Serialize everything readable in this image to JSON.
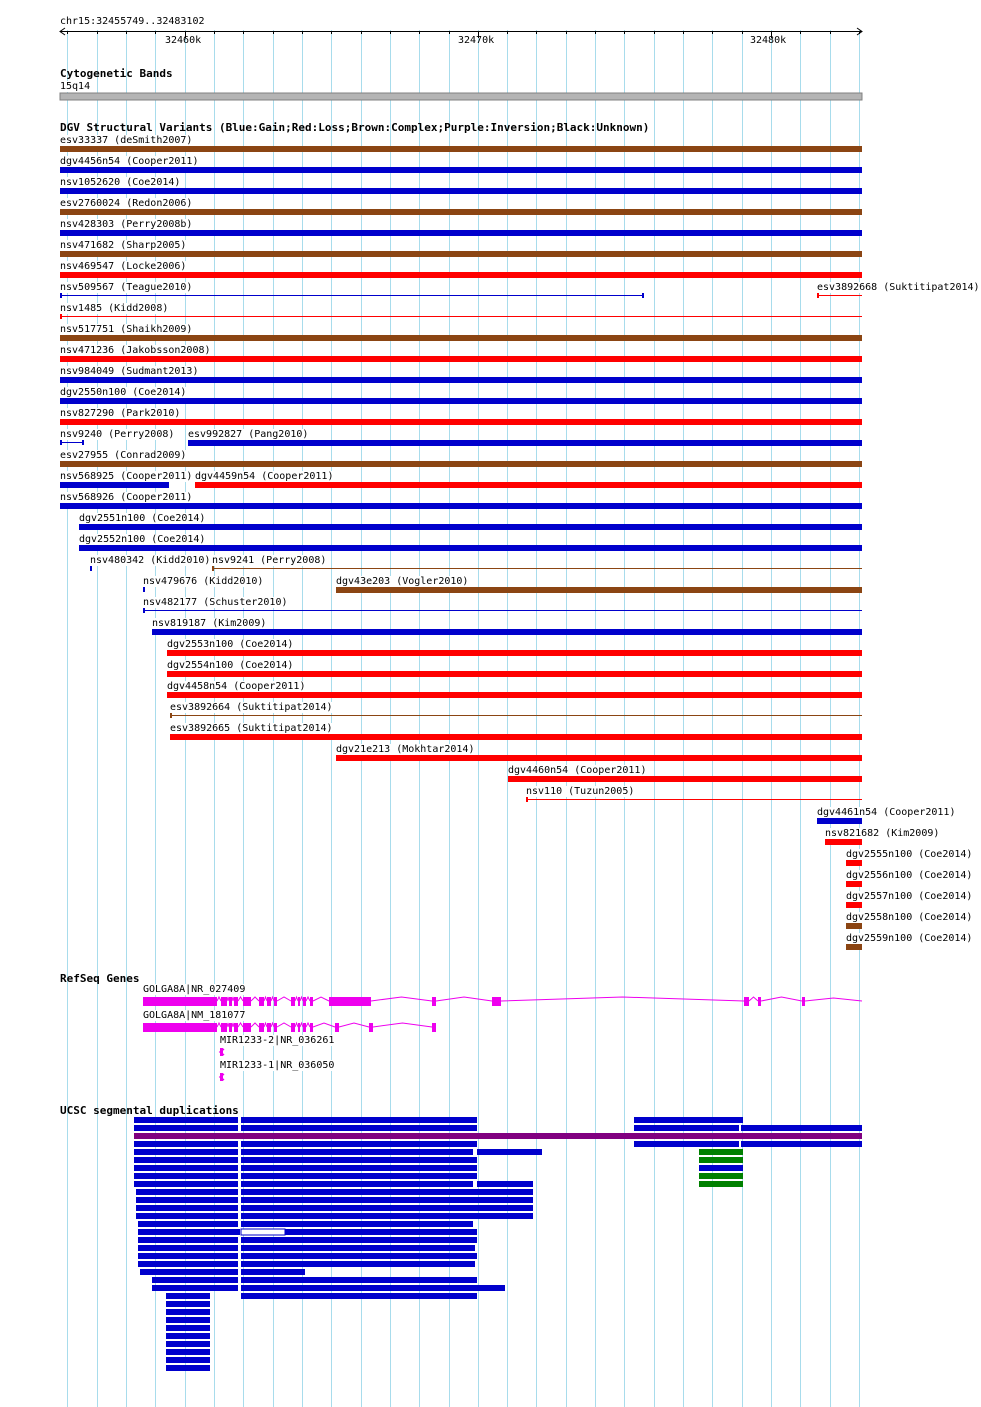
{
  "ruler": {
    "region_label": "chr15:32455749..32483102",
    "start": 32455749,
    "end": 32483102,
    "ticks": [
      {
        "pos": 32460000,
        "label": "32460k"
      },
      {
        "pos": 32470000,
        "label": "32470k"
      },
      {
        "pos": 32480000,
        "label": "32480k"
      }
    ]
  },
  "cytoband": {
    "title": "Cytogenetic Bands",
    "band": "15q14"
  },
  "dgv": {
    "title": "DGV Structural Variants (Blue:Gain;Red:Loss;Brown:Complex;Purple:Inversion;Black:Unknown)",
    "colors": {
      "gain": "#0000cc",
      "loss": "#ff0000",
      "complex": "#8b4513"
    },
    "variants": [
      {
        "label": "esv33337 (deSmith2007)",
        "type": "complex",
        "start": 32455749,
        "end": 32483102,
        "thick": true
      },
      {
        "label": "dgv4456n54 (Cooper2011)",
        "type": "gain",
        "start": 32455749,
        "end": 32483102,
        "thick": true
      },
      {
        "label": "nsv1052620 (Coe2014)",
        "type": "gain",
        "start": 32455749,
        "end": 32483102,
        "thick": true
      },
      {
        "label": "esv2760024 (Redon2006)",
        "type": "complex",
        "start": 32455749,
        "end": 32483102,
        "thick": true
      },
      {
        "label": "nsv428303 (Perry2008b)",
        "type": "gain",
        "start": 32455749,
        "end": 32483102,
        "thick": true
      },
      {
        "label": "nsv471682 (Sharp2005)",
        "type": "complex",
        "start": 32455749,
        "end": 32483102,
        "thick": true
      },
      {
        "label": "nsv469547 (Locke2006)",
        "type": "loss",
        "start": 32455749,
        "end": 32483102,
        "thick": true
      },
      {
        "label": "nsv509567 (Teague2010)",
        "type": "gain",
        "start": 32455749,
        "end": 32475660,
        "thick": false
      },
      {
        "label": "esv3892668 (Suktitipat2014)",
        "type": "loss",
        "start": 32481570,
        "end": 32483102,
        "thick": false
      },
      {
        "label": "nsv1485 (Kidd2008)",
        "type": "loss",
        "start": 32455749,
        "end": 32483102,
        "thick": false
      },
      {
        "label": "nsv517751 (Shaikh2009)",
        "type": "complex",
        "start": 32455749,
        "end": 32483102,
        "thick": true
      },
      {
        "label": "nsv471236 (Jakobsson2008)",
        "type": "loss",
        "start": 32455749,
        "end": 32483102,
        "thick": true
      },
      {
        "label": "nsv984049 (Sudmant2013)",
        "type": "gain",
        "start": 32455749,
        "end": 32483102,
        "thick": true
      },
      {
        "label": "dgv2550n100 (Coe2014)",
        "type": "gain",
        "start": 32455749,
        "end": 32483102,
        "thick": true
      },
      {
        "label": "nsv827290 (Park2010)",
        "type": "loss",
        "start": 32455749,
        "end": 32483102,
        "thick": true
      },
      {
        "label": "nsv9240 (Perry2008)",
        "type": "gain",
        "start": 32455749,
        "end": 32456570,
        "thick": false
      },
      {
        "label": "esv992827 (Pang2010)",
        "type": "gain",
        "start": 32460130,
        "end": 32483102,
        "thick": true
      },
      {
        "label": "esv27955 (Conrad2009)",
        "type": "complex",
        "start": 32455749,
        "end": 32483102,
        "thick": true
      },
      {
        "label": "nsv568925 (Cooper2011)",
        "type": "gain",
        "start": 32455749,
        "end": 32459470,
        "thick": true
      },
      {
        "label": "dgv4459n54 (Cooper2011)",
        "type": "loss",
        "start": 32460370,
        "end": 32483102,
        "thick": true
      },
      {
        "label": "nsv568926 (Cooper2011)",
        "type": "gain",
        "start": 32455749,
        "end": 32483102,
        "thick": true
      },
      {
        "label": "dgv2551n100 (Coe2014)",
        "type": "gain",
        "start": 32456380,
        "end": 32483102,
        "thick": true
      },
      {
        "label": "dgv2552n100 (Coe2014)",
        "type": "gain",
        "start": 32456380,
        "end": 32483102,
        "thick": true
      },
      {
        "label": "nsv480342 (Kidd2010)",
        "type": "gain",
        "start": 32456760,
        "end": 32456800,
        "thick": false
      },
      {
        "label": "nsv9241 (Perry2008)",
        "type": "complex",
        "start": 32460950,
        "end": 32483102,
        "thick": false
      },
      {
        "label": "nsv479676 (Kidd2010)",
        "type": "gain",
        "start": 32458570,
        "end": 32458610,
        "thick": false
      },
      {
        "label": "dgv43e203 (Vogler2010)",
        "type": "complex",
        "start": 32465170,
        "end": 32483102,
        "thick": true
      },
      {
        "label": "nsv482177 (Schuster2010)",
        "type": "gain",
        "start": 32458570,
        "end": 32483102,
        "thick": false
      },
      {
        "label": "nsv819187 (Kim2009)",
        "type": "gain",
        "start": 32458870,
        "end": 32483102,
        "thick": true
      },
      {
        "label": "dgv2553n100 (Coe2014)",
        "type": "loss",
        "start": 32459390,
        "end": 32483102,
        "thick": true
      },
      {
        "label": "dgv2554n100 (Coe2014)",
        "type": "loss",
        "start": 32459390,
        "end": 32483102,
        "thick": true
      },
      {
        "label": "dgv4458n54 (Cooper2011)",
        "type": "loss",
        "start": 32459390,
        "end": 32483102,
        "thick": true
      },
      {
        "label": "esv3892664 (Suktitipat2014)",
        "type": "complex",
        "start": 32459500,
        "end": 32483102,
        "thick": false
      },
      {
        "label": "esv3892665 (Suktitipat2014)",
        "type": "loss",
        "start": 32459500,
        "end": 32483102,
        "thick": true
      },
      {
        "label": "dgv21e213 (Mokhtar2014)",
        "type": "loss",
        "start": 32465170,
        "end": 32483102,
        "thick": true
      },
      {
        "label": "dgv4460n54 (Cooper2011)",
        "type": "loss",
        "start": 32471020,
        "end": 32483102,
        "thick": true
      },
      {
        "label": "nsv110 (Tuzun2005)",
        "type": "loss",
        "start": 32471640,
        "end": 32483102,
        "thick": false
      },
      {
        "label": "dgv4461n54 (Cooper2011)",
        "type": "gain",
        "start": 32481570,
        "end": 32483102,
        "thick": true
      },
      {
        "label": "nsv821682 (Kim2009)",
        "type": "loss",
        "start": 32481840,
        "end": 32483102,
        "thick": true
      },
      {
        "label": "dgv2555n100 (Coe2014)",
        "type": "loss",
        "start": 32482560,
        "end": 32483102,
        "thick": true
      },
      {
        "label": "dgv2556n100 (Coe2014)",
        "type": "loss",
        "start": 32482560,
        "end": 32483102,
        "thick": true
      },
      {
        "label": "dgv2557n100 (Coe2014)",
        "type": "loss",
        "start": 32482560,
        "end": 32483102,
        "thick": true
      },
      {
        "label": "dgv2558n100 (Coe2014)",
        "type": "complex",
        "start": 32482560,
        "end": 32483102,
        "thick": true
      },
      {
        "label": "dgv2559n100 (Coe2014)",
        "type": "complex",
        "start": 32482560,
        "end": 32483102,
        "thick": true
      }
    ]
  },
  "refseq": {
    "title": "RefSeq Genes",
    "color": "#ee00ee",
    "genes": [
      {
        "label": "GOLGA8A|NR_027409",
        "start": 32458590,
        "end": 32483102,
        "exons": [
          [
            32458590,
            32461120
          ],
          [
            32461250,
            32461430
          ],
          [
            32461520,
            32461600
          ],
          [
            32461700,
            32461830
          ],
          [
            32461990,
            32462250
          ],
          [
            32462550,
            32462710
          ],
          [
            32462820,
            32462930
          ],
          [
            32463040,
            32463160
          ],
          [
            32463640,
            32463780
          ],
          [
            32463850,
            32463940
          ],
          [
            32464040,
            32464140
          ],
          [
            32464290,
            32464380
          ],
          [
            32464920,
            32466340
          ],
          [
            32468430,
            32468570
          ],
          [
            32470490,
            32470780
          ],
          [
            32479070,
            32479240
          ],
          [
            32479570,
            32479670
          ],
          [
            32481070,
            32481170
          ]
        ]
      },
      {
        "label": "GOLGA8A|NM_181077",
        "start": 32458590,
        "end": 32468570,
        "exons": [
          [
            32458590,
            32461120
          ],
          [
            32461250,
            32461430
          ],
          [
            32461520,
            32461600
          ],
          [
            32461700,
            32461830
          ],
          [
            32461990,
            32462250
          ],
          [
            32462550,
            32462710
          ],
          [
            32462820,
            32462930
          ],
          [
            32463040,
            32463160
          ],
          [
            32463640,
            32463780
          ],
          [
            32463850,
            32463940
          ],
          [
            32464040,
            32464140
          ],
          [
            32464290,
            32464380
          ],
          [
            32465130,
            32465260
          ],
          [
            32466290,
            32466430
          ],
          [
            32468430,
            32468570
          ]
        ]
      },
      {
        "label": "MIR1233-2|NR_036261",
        "start": 32461000,
        "end": 32461300,
        "exons": [
          [
            32461200,
            32461300
          ]
        ],
        "reverse": true
      },
      {
        "label": "MIR1233-1|NR_036050",
        "start": 32461000,
        "end": 32461300,
        "exons": [
          [
            32461200,
            32461300
          ]
        ],
        "reverse": true
      }
    ]
  },
  "segdup": {
    "title": "UCSC segmental duplications"
  }
}
